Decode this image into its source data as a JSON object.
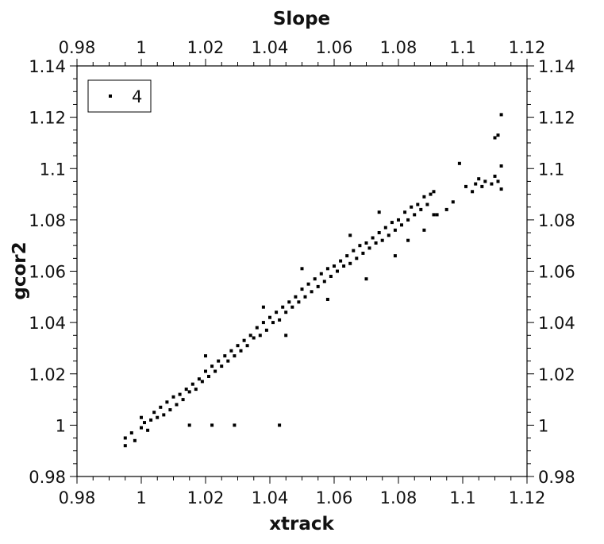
{
  "chart_data": {
    "type": "scatter",
    "title": "Slope",
    "xlabel": "xtrack",
    "ylabel": "gcor2",
    "xlim": [
      0.98,
      1.12
    ],
    "ylim": [
      0.98,
      1.14
    ],
    "x_ticks": [
      "0.98",
      "1",
      "1.02",
      "1.04",
      "1.06",
      "1.08",
      "1.1",
      "1.12"
    ],
    "y_ticks": [
      "0.98",
      "1",
      "1.02",
      "1.04",
      "1.06",
      "1.08",
      "1.1",
      "1.12",
      "1.14"
    ],
    "grid": false,
    "legend": {
      "position": "top-left",
      "entries": [
        "4"
      ]
    },
    "marker_color": "#000000",
    "series": [
      {
        "name": "4",
        "points": [
          [
            0.995,
            0.995
          ],
          [
            0.995,
            0.992
          ],
          [
            0.997,
            0.997
          ],
          [
            0.998,
            0.994
          ],
          [
            1.0,
            0.999
          ],
          [
            1.0,
            1.003
          ],
          [
            1.001,
            1.001
          ],
          [
            1.002,
            0.998
          ],
          [
            1.003,
            1.002
          ],
          [
            1.004,
            1.005
          ],
          [
            1.005,
            1.003
          ],
          [
            1.006,
            1.007
          ],
          [
            1.007,
            1.004
          ],
          [
            1.008,
            1.009
          ],
          [
            1.009,
            1.006
          ],
          [
            1.01,
            1.011
          ],
          [
            1.011,
            1.008
          ],
          [
            1.012,
            1.012
          ],
          [
            1.013,
            1.01
          ],
          [
            1.014,
            1.014
          ],
          [
            1.015,
            1.013
          ],
          [
            1.016,
            1.016
          ],
          [
            1.017,
            1.014
          ],
          [
            1.018,
            1.018
          ],
          [
            1.019,
            1.017
          ],
          [
            1.02,
            1.021
          ],
          [
            1.021,
            1.019
          ],
          [
            1.022,
            1.023
          ],
          [
            1.023,
            1.021
          ],
          [
            1.024,
            1.025
          ],
          [
            1.025,
            1.023
          ],
          [
            1.026,
            1.027
          ],
          [
            1.027,
            1.025
          ],
          [
            1.028,
            1.029
          ],
          [
            1.029,
            1.027
          ],
          [
            1.03,
            1.031
          ],
          [
            1.031,
            1.029
          ],
          [
            1.032,
            1.033
          ],
          [
            1.033,
            1.031
          ],
          [
            1.034,
            1.035
          ],
          [
            1.035,
            1.034
          ],
          [
            1.036,
            1.038
          ],
          [
            1.037,
            1.035
          ],
          [
            1.038,
            1.04
          ],
          [
            1.039,
            1.037
          ],
          [
            1.04,
            1.042
          ],
          [
            1.041,
            1.04
          ],
          [
            1.042,
            1.044
          ],
          [
            1.043,
            1.041
          ],
          [
            1.044,
            1.046
          ],
          [
            1.045,
            1.044
          ],
          [
            1.046,
            1.048
          ],
          [
            1.047,
            1.046
          ],
          [
            1.048,
            1.05
          ],
          [
            1.049,
            1.048
          ],
          [
            1.05,
            1.053
          ],
          [
            1.051,
            1.05
          ],
          [
            1.052,
            1.055
          ],
          [
            1.053,
            1.052
          ],
          [
            1.054,
            1.057
          ],
          [
            1.055,
            1.054
          ],
          [
            1.056,
            1.059
          ],
          [
            1.057,
            1.056
          ],
          [
            1.058,
            1.061
          ],
          [
            1.059,
            1.058
          ],
          [
            1.06,
            1.062
          ],
          [
            1.061,
            1.06
          ],
          [
            1.062,
            1.064
          ],
          [
            1.063,
            1.062
          ],
          [
            1.064,
            1.066
          ],
          [
            1.065,
            1.063
          ],
          [
            1.066,
            1.068
          ],
          [
            1.067,
            1.065
          ],
          [
            1.068,
            1.07
          ],
          [
            1.069,
            1.067
          ],
          [
            1.07,
            1.071
          ],
          [
            1.071,
            1.069
          ],
          [
            1.072,
            1.073
          ],
          [
            1.073,
            1.071
          ],
          [
            1.074,
            1.075
          ],
          [
            1.075,
            1.072
          ],
          [
            1.076,
            1.077
          ],
          [
            1.077,
            1.074
          ],
          [
            1.078,
            1.079
          ],
          [
            1.079,
            1.076
          ],
          [
            1.08,
            1.08
          ],
          [
            1.081,
            1.078
          ],
          [
            1.082,
            1.083
          ],
          [
            1.083,
            1.08
          ],
          [
            1.084,
            1.085
          ],
          [
            1.085,
            1.082
          ],
          [
            1.086,
            1.086
          ],
          [
            1.087,
            1.084
          ],
          [
            1.088,
            1.089
          ],
          [
            1.089,
            1.086
          ],
          [
            1.09,
            1.09
          ],
          [
            1.091,
            1.091
          ],
          [
            1.092,
            1.082
          ],
          [
            1.095,
            1.084
          ],
          [
            1.097,
            1.087
          ],
          [
            1.099,
            1.102
          ],
          [
            1.101,
            1.093
          ],
          [
            1.103,
            1.091
          ],
          [
            1.104,
            1.094
          ],
          [
            1.105,
            1.096
          ],
          [
            1.106,
            1.093
          ],
          [
            1.107,
            1.095
          ],
          [
            1.109,
            1.094
          ],
          [
            1.11,
            1.097
          ],
          [
            1.11,
            1.112
          ],
          [
            1.111,
            1.113
          ],
          [
            1.111,
            1.095
          ],
          [
            1.112,
            1.101
          ],
          [
            1.112,
            1.121
          ],
          [
            1.112,
            1.092
          ],
          [
            1.015,
            1.0
          ],
          [
            1.022,
            1.0
          ],
          [
            1.029,
            1.0
          ],
          [
            1.043,
            1.0
          ],
          [
            1.079,
            1.066
          ],
          [
            1.083,
            1.072
          ],
          [
            1.065,
            1.074
          ],
          [
            1.045,
            1.035
          ],
          [
            1.038,
            1.046
          ],
          [
            1.02,
            1.027
          ],
          [
            1.05,
            1.061
          ],
          [
            1.058,
            1.049
          ],
          [
            1.07,
            1.057
          ],
          [
            1.074,
            1.083
          ],
          [
            1.088,
            1.076
          ],
          [
            1.091,
            1.082
          ]
        ]
      }
    ]
  }
}
